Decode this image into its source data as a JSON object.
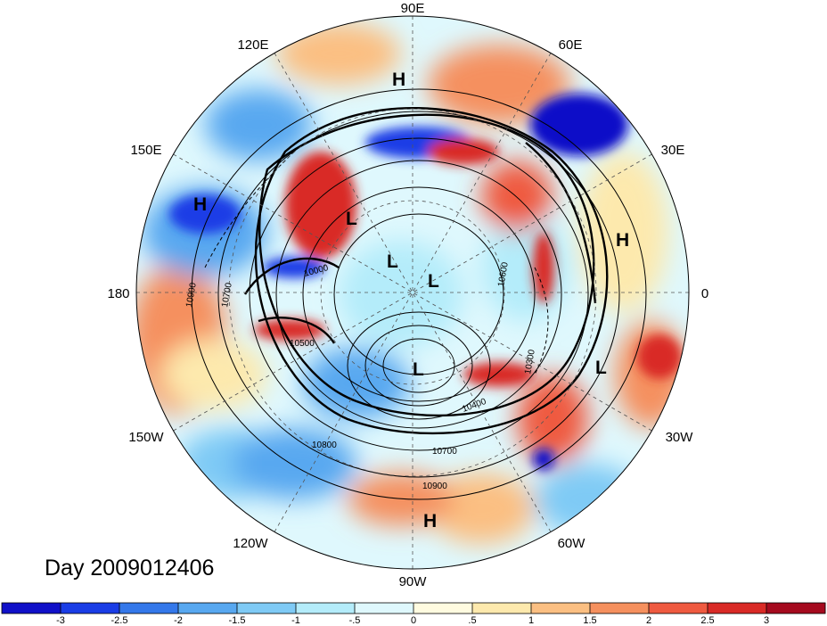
{
  "title": "Day 2009012406",
  "longitude_labels": [
    "90E",
    "60E",
    "30E",
    "0",
    "30W",
    "60W",
    "90W",
    "120W",
    "150W",
    "180",
    "150E",
    "120E"
  ],
  "pressure_systems": [
    {
      "type": "H",
      "name": "high-a"
    },
    {
      "type": "H",
      "name": "high-b"
    },
    {
      "type": "H",
      "name": "high-c"
    },
    {
      "type": "H",
      "name": "high-d"
    },
    {
      "type": "L",
      "name": "low-a"
    },
    {
      "type": "L",
      "name": "low-b"
    },
    {
      "type": "L",
      "name": "low-c"
    },
    {
      "type": "L",
      "name": "low-d"
    },
    {
      "type": "L",
      "name": "low-e"
    }
  ],
  "contour_labels": [
    "10900",
    "10700",
    "10500",
    "10800",
    "10700",
    "10900",
    "10400",
    "10000",
    "10600",
    "10300"
  ],
  "colorbar": {
    "tick_labels": [
      "-3",
      "-2.5",
      "-2",
      "-1.5",
      "-1",
      "-.5",
      "0",
      ".5",
      "1",
      "1.5",
      "2",
      "2.5",
      "3"
    ],
    "colors": [
      "#1010c8",
      "#1a3de6",
      "#3478ea",
      "#58a8f0",
      "#7fcaf5",
      "#b4ecfa",
      "#dff8fd",
      "#fffbe0",
      "#fde9ad",
      "#fbbf82",
      "#f5905e",
      "#ef5a40",
      "#d92a26",
      "#a50a1e"
    ]
  }
}
